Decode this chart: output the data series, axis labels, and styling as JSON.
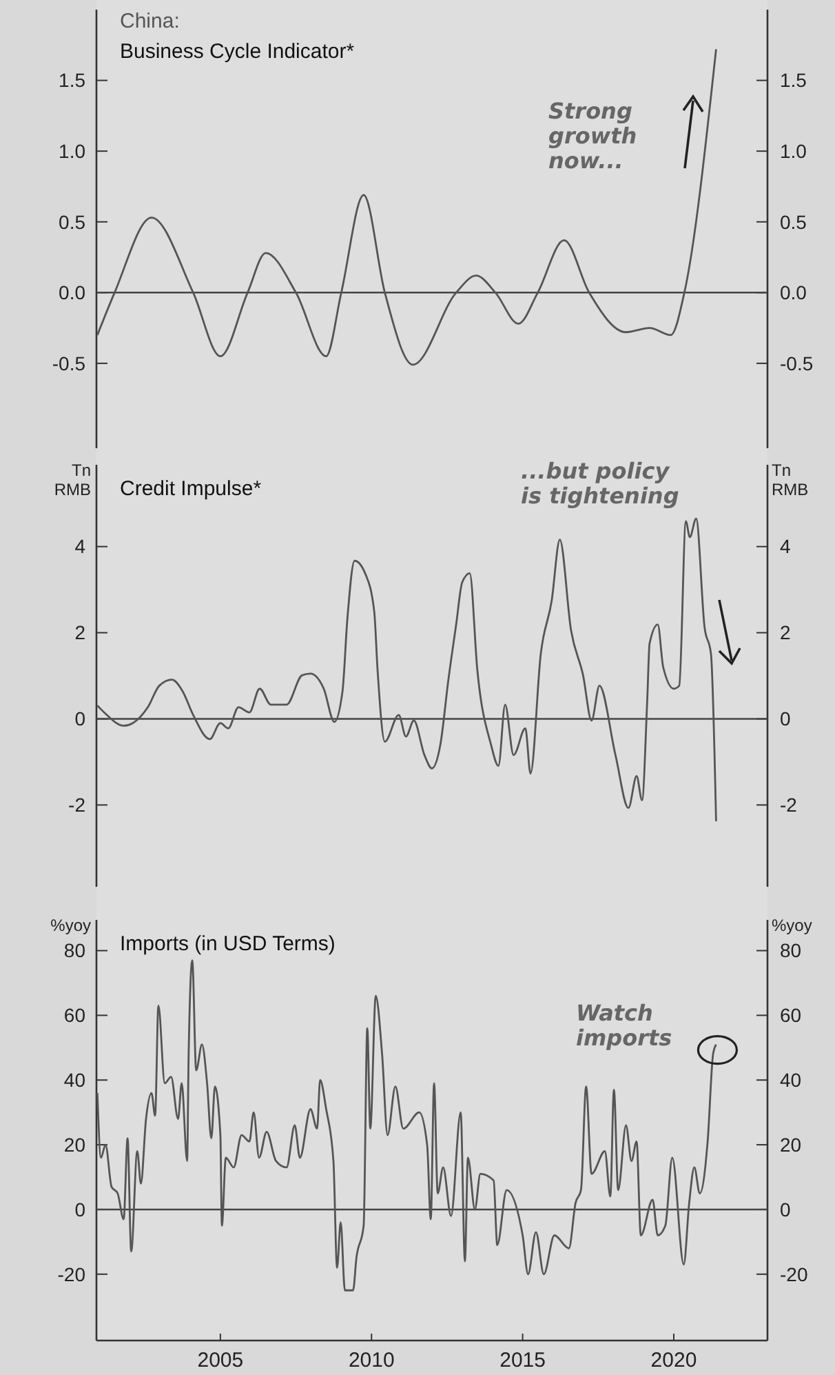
{
  "chart_data": [
    {
      "type": "line",
      "title": "China:",
      "subtitle": "Business Cycle Indicator*",
      "xlim": [
        2000.9,
        2023.1
      ],
      "ylim": [
        -1.1,
        2.0
      ],
      "yticks": [
        {
          "value": -0.5,
          "label": "-0.5"
        },
        {
          "value": 0,
          "label": "0.0"
        },
        {
          "value": 0.5,
          "label": "0.5"
        },
        {
          "value": 1,
          "label": "1.0"
        },
        {
          "value": 1.5,
          "label": "1.5"
        }
      ],
      "y2lim": [
        -1.1,
        2.0
      ],
      "y2ticks": [
        {
          "value": -0.5,
          "label": "-0.5"
        },
        {
          "value": 0,
          "label": "0.0"
        },
        {
          "value": 0.5,
          "label": "0.5"
        },
        {
          "value": 1,
          "label": "1.0"
        },
        {
          "value": 1.5,
          "label": "1.5"
        }
      ],
      "tick_labels": "y",
      "ref_lines": [
        {
          "axis": "y",
          "value": 0,
          "color": "#444444"
        }
      ],
      "annotations": [
        "Strong growth now..."
      ],
      "series": [
        {
          "color": "#555555",
          "x": [
            2000.93,
            2001.5,
            2002.72,
            2004.1,
            2005.0,
            2005.9,
            2006.5,
            2007.5,
            2008.5,
            2009.0,
            2009.74,
            2010.44,
            2011.37,
            2012.8,
            2013.46,
            2014.1,
            2014.86,
            2015.5,
            2016.37,
            2017.2,
            2018.42,
            2019.2,
            2019.9,
            2020.35,
            2021.4
          ],
          "values": [
            -0.3,
            0,
            0.53,
            0,
            -0.45,
            0,
            0.28,
            0,
            -0.45,
            0,
            0.69,
            0,
            -0.51,
            0,
            0.12,
            0,
            -0.22,
            0,
            0.37,
            0,
            -0.28,
            -0.25,
            -0.3,
            0,
            1.72
          ]
        }
      ]
    },
    {
      "type": "line",
      "title": "Credit Impulse*",
      "ylabel": "Tn RMB",
      "y2label": "Tn RMB",
      "xlim": [
        2000.9,
        2023.1
      ],
      "ylim": [
        -3.9,
        5.9
      ],
      "yticks": [
        -2,
        0,
        2,
        4
      ],
      "y2lim": [
        -3.9,
        5.9
      ],
      "y2ticks": [
        -2,
        0,
        2,
        4
      ],
      "tick_labels": "y",
      "ref_lines": [
        {
          "axis": "y",
          "value": 0,
          "color": "#444444"
        }
      ],
      "annotations": [
        "...but policy is tightening"
      ],
      "series": [
        {
          "color": "#555555",
          "x": [
            2000.93,
            2001.2,
            2001.8,
            2002.1,
            2002.6,
            2002.98,
            2003.4,
            2003.75,
            2004.1,
            2004.65,
            2005.0,
            2005.26,
            2005.6,
            2005.96,
            2006.3,
            2006.67,
            2007.19,
            2007.7,
            2007.98,
            2008.42,
            2008.77,
            2009.04,
            2009.2,
            2009.44,
            2009.8,
            2010.09,
            2010.2,
            2010.44,
            2010.9,
            2011.14,
            2011.4,
            2011.75,
            2012.0,
            2012.28,
            2012.54,
            2012.8,
            2013.0,
            2013.25,
            2013.5,
            2013.95,
            2014.2,
            2014.42,
            2014.7,
            2015.09,
            2015.26,
            2015.6,
            2015.96,
            2016.23,
            2016.6,
            2017.0,
            2017.28,
            2017.54,
            2018.07,
            2018.5,
            2018.77,
            2018.95,
            2019.12,
            2019.2,
            2019.47,
            2019.65,
            2020.0,
            2020.18,
            2020.4,
            2020.53,
            2020.74,
            2021.02,
            2021.23,
            2021.4
          ],
          "values": [
            0.31,
            0.12,
            -0.16,
            -0.1,
            0.27,
            0.77,
            0.91,
            0.64,
            0.09,
            -0.47,
            -0.1,
            -0.22,
            0.27,
            0.15,
            0.7,
            0.33,
            0.33,
            1.01,
            1.05,
            0.7,
            -0.07,
            0.64,
            2.31,
            3.67,
            3.36,
            2.49,
            1.14,
            -0.53,
            0.09,
            -0.41,
            -0.04,
            -0.84,
            -1.15,
            -0.59,
            0.89,
            2.19,
            3.17,
            3.38,
            1.14,
            -0.59,
            -1.09,
            0.33,
            -0.84,
            -0.22,
            -1.27,
            1.51,
            2.74,
            4.16,
            2.06,
            1.01,
            -0.04,
            0.77,
            -0.84,
            -2.07,
            -1.33,
            -1.89,
            0.4,
            1.75,
            2.19,
            1.2,
            0.7,
            0.77,
            4.59,
            4.22,
            4.65,
            2.12,
            1.51,
            -2.38
          ]
        }
      ]
    },
    {
      "type": "line",
      "title": "Imports (in USD Terms)",
      "ylabel": "%yoy",
      "y2label": "%yoy",
      "xlim": [
        2000.9,
        2023.1
      ],
      "xticks": [
        2005,
        2010,
        2015,
        2020
      ],
      "ylim": [
        -40.5,
        89.5
      ],
      "yticks": [
        -20,
        0,
        20,
        40,
        60,
        80
      ],
      "y2lim": [
        -40.5,
        89.5
      ],
      "y2ticks": [
        -20,
        0,
        20,
        40,
        60,
        80
      ],
      "ref_lines": [
        {
          "axis": "y",
          "value": 0,
          "color": "#444444"
        }
      ],
      "annotations": [
        "Watch imports"
      ],
      "series": [
        {
          "color": "#555555",
          "x": [
            2000.93,
            2001.05,
            2001.2,
            2001.4,
            2001.6,
            2001.8,
            2001.93,
            2002.05,
            2002.25,
            2002.37,
            2002.54,
            2002.72,
            2002.84,
            2002.95,
            2003.16,
            2003.37,
            2003.6,
            2003.72,
            2003.9,
            2003.95,
            2004.07,
            2004.2,
            2004.39,
            2004.56,
            2004.7,
            2004.82,
            2005.0,
            2005.05,
            2005.18,
            2005.44,
            2005.7,
            2005.96,
            2006.1,
            2006.28,
            2006.53,
            2006.84,
            2007.19,
            2007.46,
            2007.63,
            2007.98,
            2008.2,
            2008.3,
            2008.5,
            2008.74,
            2008.86,
            2008.98,
            2009.12,
            2009.39,
            2009.5,
            2009.74,
            2009.86,
            2009.96,
            2010.14,
            2010.35,
            2010.53,
            2010.79,
            2011.05,
            2011.58,
            2011.84,
            2011.96,
            2012.07,
            2012.19,
            2012.37,
            2012.63,
            2012.95,
            2013.09,
            2013.19,
            2013.42,
            2013.6,
            2014.04,
            2014.16,
            2014.47,
            2015.0,
            2015.18,
            2015.44,
            2015.7,
            2016.05,
            2016.53,
            2016.75,
            2016.93,
            2017.1,
            2017.28,
            2017.72,
            2017.9,
            2018.02,
            2018.16,
            2018.42,
            2018.6,
            2018.77,
            2018.91,
            2019.3,
            2019.47,
            2019.72,
            2019.95,
            2020.33,
            2020.51,
            2020.68,
            2020.86,
            2021.12,
            2021.3,
            2021.4
          ],
          "values": [
            36,
            16,
            20,
            7,
            5,
            -3,
            22,
            -13,
            18,
            8,
            28,
            36,
            29,
            63,
            39,
            41,
            28,
            39,
            15,
            48,
            77,
            43,
            51,
            39,
            22,
            38,
            23,
            -5,
            16,
            13,
            23,
            21,
            30,
            16,
            24,
            15,
            13,
            26,
            16,
            31,
            25,
            40,
            31,
            15,
            -18,
            -4,
            -25,
            -25,
            -15,
            -5,
            56,
            25,
            66,
            48,
            23,
            38,
            25,
            30,
            20,
            -3,
            39,
            5,
            13,
            -2,
            30,
            -16,
            16,
            0,
            11,
            9,
            -11,
            6,
            -8,
            -20,
            -7,
            -20,
            -8,
            -12,
            2,
            6,
            38,
            11,
            18,
            4,
            37,
            6,
            26,
            15,
            21,
            -8,
            3,
            -8,
            -5,
            16,
            -17,
            2,
            13,
            5,
            21,
            48,
            51
          ]
        }
      ]
    }
  ]
}
